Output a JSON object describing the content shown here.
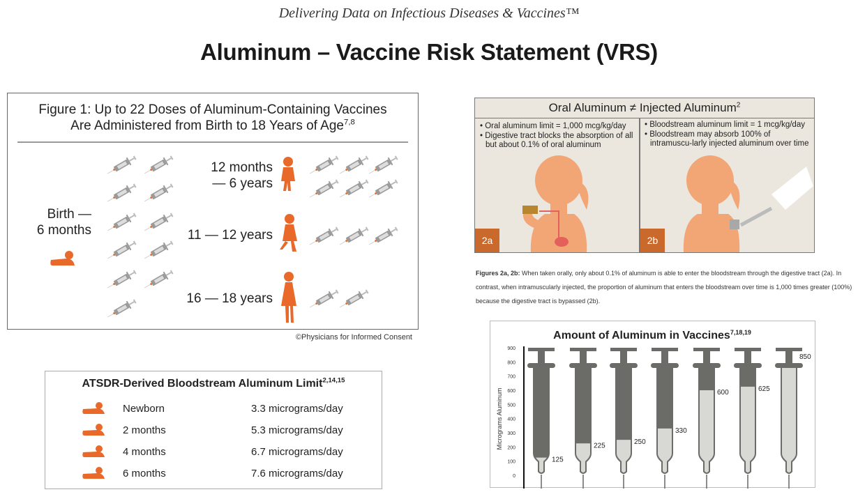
{
  "header": {
    "tagline": "Delivering Data on Infectious Diseases & Vaccines™",
    "title": "Aluminum – Vaccine Risk Statement (VRS)"
  },
  "figure1": {
    "title_line1": "Figure 1: Up to 22 Doses of Aluminum-Containing Vaccines",
    "title_line2": "Are Administered from Birth to 18 Years of Age",
    "title_refs": "7,8",
    "groups": [
      {
        "label_line1": "Birth —",
        "label_line2": "6 months",
        "doses": 11,
        "icon": "infant-icon"
      },
      {
        "label_line1": "12 months",
        "label_line2": "—  6 years",
        "doses": 6,
        "icon": "toddler-icon"
      },
      {
        "label_line1": "11 — 12 years",
        "label_line2": "",
        "doses": 3,
        "icon": "child-icon"
      },
      {
        "label_line1": "16 — 18 years",
        "label_line2": "",
        "doses": 2,
        "icon": "teen-icon"
      }
    ],
    "copyright": "©Physicians for Informed Consent"
  },
  "atsdr": {
    "title": "ATSDR-Derived Bloodstream Aluminum Limit",
    "title_refs": "2,14,15",
    "rows": [
      {
        "age": "Newborn",
        "limit": "3.3 micrograms/day"
      },
      {
        "age": "2 months",
        "limit": "5.3 micrograms/day"
      },
      {
        "age": "4 months",
        "limit": "6.7 micrograms/day"
      },
      {
        "age": "6 months",
        "limit": "7.6 micrograms/day"
      }
    ]
  },
  "oral": {
    "title": "Oral Aluminum ≠ Injected Aluminum",
    "title_refs": "2",
    "left_bullets": [
      "Oral aluminum limit = 1,000 mcg/kg/day",
      "Digestive tract blocks the absorption of all but about 0.1% of oral aluminum"
    ],
    "right_bullets": [
      "Bloodstream aluminum limit  = 1 mcg/kg/day",
      "Bloodstream may absorb 100% of intramuscu-larly injected aluminum over time"
    ],
    "badge_left": "2a",
    "badge_right": "2b",
    "colors": {
      "silhouette": "#f2a676",
      "badge": "#c96a2c",
      "panel": "#ebe7de"
    }
  },
  "caption": {
    "lead": "Figures 2a, 2b:",
    "text": " When taken orally, only about 0.1% of aluminum is able to enter the bloodstream through the digestive tract (2a). In contrast, when intramuscularly injected, the proportion of aluminum that enters the bloodstream over time is 1,000 times greater (100%) because the digestive tract is bypassed (2b)."
  },
  "chart_data": {
    "type": "bar",
    "title": "Amount of Aluminum in Vaccines",
    "title_refs": "7,18,19",
    "ylabel": "Micrograms Aluminum",
    "ylim": [
      0,
      900
    ],
    "yticks": [
      "0",
      "100",
      "200",
      "300",
      "400",
      "500",
      "600",
      "700",
      "800",
      "900"
    ],
    "values": [
      125,
      225,
      250,
      330,
      600,
      625,
      850
    ],
    "data_labels": [
      "125",
      "225",
      "250",
      "330",
      "600",
      "625",
      "850"
    ],
    "grid": false,
    "colors": {
      "barrel": "#6b6b68",
      "fill": "#d8d8d4"
    }
  }
}
